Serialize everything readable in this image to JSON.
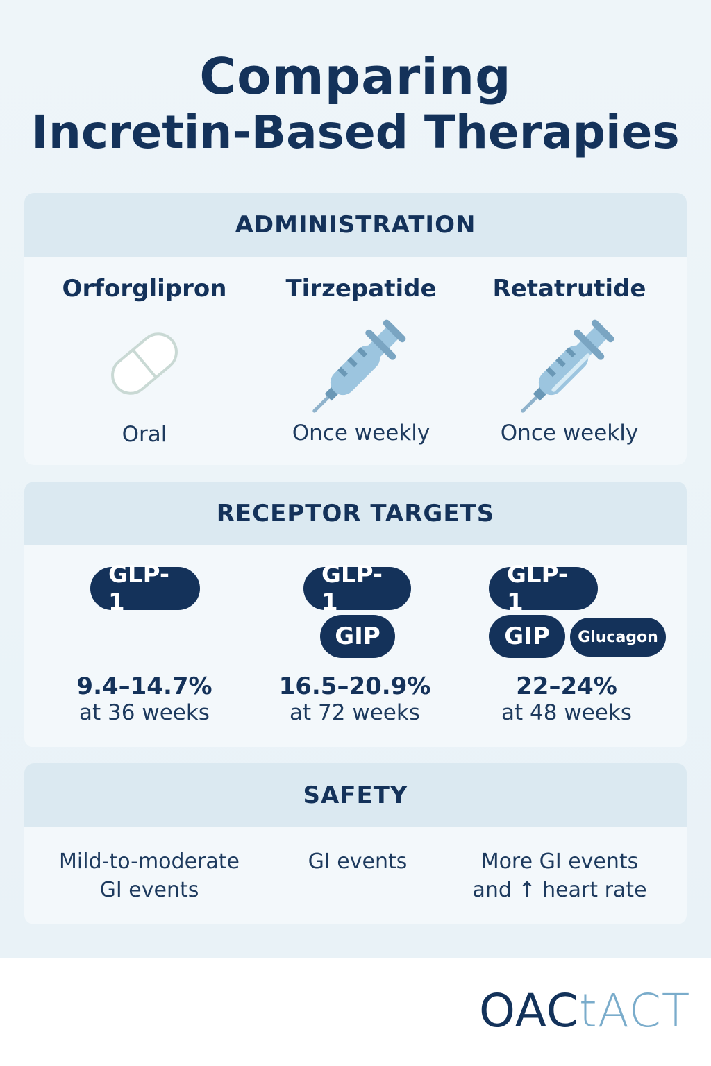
{
  "title": {
    "line1": "Comparing",
    "line2": "Incretin-Based Therapies"
  },
  "administration": {
    "header": "ADMINISTRATION",
    "drugs": [
      {
        "name": "Orforglipron",
        "icon": "pill-icon",
        "mode": "Oral"
      },
      {
        "name": "Tirzepatide",
        "icon": "syringe-icon",
        "mode": "Once weekly"
      },
      {
        "name": "Retatrutide",
        "icon": "syringe-icon",
        "mode": "Once weekly"
      }
    ]
  },
  "receptor_targets": {
    "header": "RECEPTOR TARGETS",
    "columns": [
      {
        "targets": [
          "GLP-1"
        ],
        "weight_loss": "9.4–14.7%",
        "duration": "at 36 weeks"
      },
      {
        "targets": [
          "GLP-1",
          "GIP"
        ],
        "weight_loss": "16.5–20.9%",
        "duration": "at 72 weeks"
      },
      {
        "targets": [
          "GLP-1",
          "GIP",
          "Glucagon"
        ],
        "weight_loss": "22–24%",
        "duration": "at 48 weeks"
      }
    ]
  },
  "safety": {
    "header": "SAFETY",
    "columns": [
      {
        "line1": "Mild-to-moderate",
        "line2": "GI events"
      },
      {
        "line1": "GI events",
        "line2": ""
      },
      {
        "line1": "More GI events",
        "line2": "and ↑ heart rate"
      }
    ]
  },
  "logo": {
    "part1": "OAC",
    "part2": "tACT"
  },
  "colors": {
    "navy": "#14325a",
    "header_bg": "#dbe9f1",
    "syringe": "#9cc5df",
    "logo_light": "#7aaccb"
  }
}
